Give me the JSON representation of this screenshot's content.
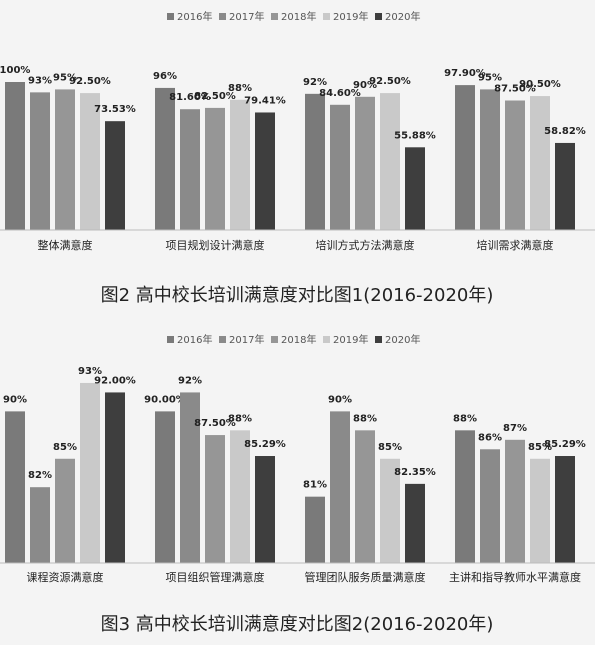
{
  "chart_data": [
    {
      "type": "bar",
      "caption": "图2  高中校长培训满意度对比图1(2016-2020年)",
      "categories": [
        "整体满意度",
        "项目规划设计满意度",
        "培训方式方法满意度",
        "培训需求满意度"
      ],
      "series": [
        {
          "name": "2016年",
          "color": "#7a7a7a",
          "values": [
            100,
            96,
            92,
            97.9
          ],
          "value_labels": [
            "100%",
            "96%",
            "92%",
            "97.90%"
          ]
        },
        {
          "name": "2017年",
          "color": "#8a8a8a",
          "values": [
            93,
            81.6,
            84.6,
            95
          ],
          "value_labels": [
            "93%",
            "81.60%",
            "84.60%",
            "95%"
          ]
        },
        {
          "name": "2018年",
          "color": "#969696",
          "values": [
            95,
            82.5,
            90,
            87.5
          ],
          "value_labels": [
            "95%",
            "82.50%",
            "90%",
            "87.50%"
          ]
        },
        {
          "name": "2019年",
          "color": "#c9c9c9",
          "values": [
            92.5,
            88,
            92.5,
            90.5
          ],
          "value_labels": [
            "92.50%",
            "88%",
            "92.50%",
            "90.50%"
          ]
        },
        {
          "name": "2020年",
          "color": "#3e3e3e",
          "values": [
            73.53,
            79.41,
            55.88,
            58.82
          ],
          "value_labels": [
            "73.53%",
            "79.41%",
            "55.88%",
            "58.82%"
          ]
        }
      ],
      "ylim": [
        0,
        100
      ]
    },
    {
      "type": "bar",
      "caption": "图3  高中校长培训满意度对比图2(2016-2020年)",
      "categories": [
        "课程资源满意度",
        "项目组织管理满意度",
        "管理团队服务质量满意度",
        "主讲和指导教师水平满意度"
      ],
      "series": [
        {
          "name": "2016年",
          "color": "#7a7a7a",
          "values": [
            90,
            90,
            81,
            88
          ],
          "value_labels": [
            "90%",
            "90.00%",
            "81%",
            "88%"
          ]
        },
        {
          "name": "2017年",
          "color": "#8a8a8a",
          "values": [
            82,
            92,
            90,
            86
          ],
          "value_labels": [
            "82%",
            "92%",
            "90%",
            "86%"
          ]
        },
        {
          "name": "2018年",
          "color": "#969696",
          "values": [
            85,
            87.5,
            88,
            87
          ],
          "value_labels": [
            "85%",
            "87.50%",
            "88%",
            "87%"
          ]
        },
        {
          "name": "2019年",
          "color": "#c9c9c9",
          "values": [
            93,
            88,
            85,
            85
          ],
          "value_labels": [
            "93%",
            "88%",
            "85%",
            "85%"
          ]
        },
        {
          "name": "2020年",
          "color": "#3e3e3e",
          "values": [
            92,
            85.29,
            82.35,
            85.29
          ],
          "value_labels": [
            "92.00%",
            "85.29%",
            "82.35%",
            "85.29%"
          ]
        }
      ],
      "ylim": [
        74,
        95
      ]
    }
  ]
}
